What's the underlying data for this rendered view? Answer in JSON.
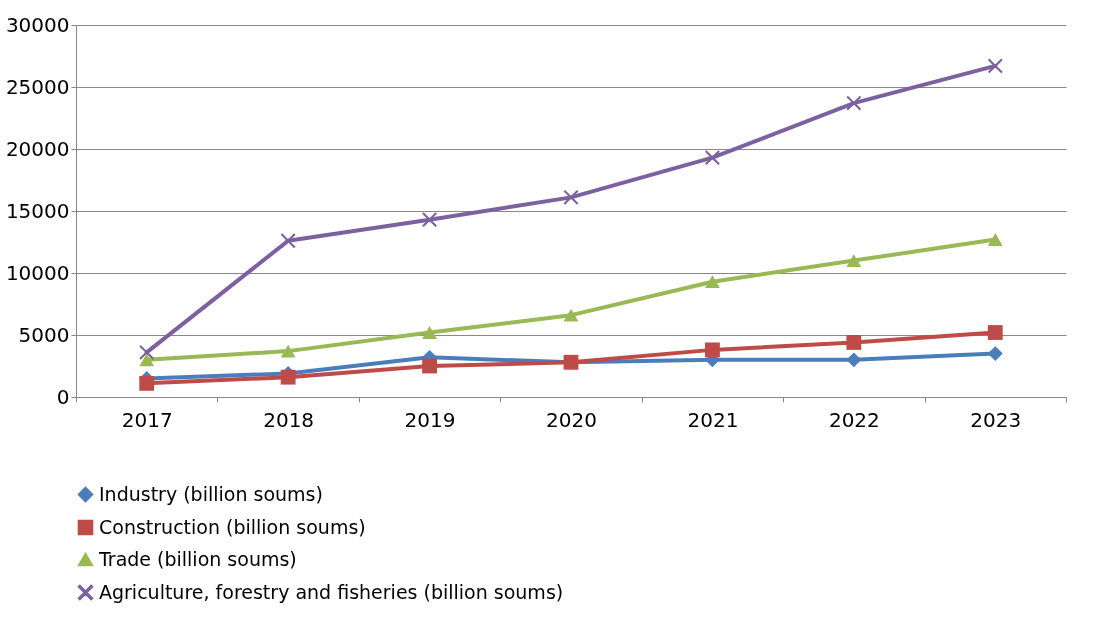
{
  "chart_data": {
    "type": "line",
    "categories": [
      "2017",
      "2018",
      "2019",
      "2020",
      "2021",
      "2022",
      "2023"
    ],
    "series": [
      {
        "name": "Industry (billion soums)",
        "color": "#4a7ebb",
        "marker": "diamond",
        "values": [
          1500,
          1900,
          3200,
          2800,
          3000,
          3000,
          3500
        ]
      },
      {
        "name": "Construction (billion soums)",
        "color": "#be4b48",
        "marker": "square",
        "values": [
          1100,
          1600,
          2500,
          2800,
          3800,
          4400,
          5200
        ]
      },
      {
        "name": "Trade (billion soums)",
        "color": "#98b954",
        "marker": "triangle",
        "values": [
          3000,
          3700,
          5200,
          6600,
          9300,
          11000,
          12700
        ]
      },
      {
        "name": "Agriculture, forestry and fisheries (billion soums)",
        "color": "#7d60a0",
        "marker": "cross",
        "values": [
          3600,
          12600,
          14300,
          16100,
          19300,
          23700,
          26700
        ]
      }
    ],
    "ylim": [
      0,
      30000
    ],
    "yticks": [
      0,
      5000,
      10000,
      15000,
      20000,
      25000,
      30000
    ],
    "grid": "y",
    "legend": "bottom",
    "line_style": "solid"
  }
}
